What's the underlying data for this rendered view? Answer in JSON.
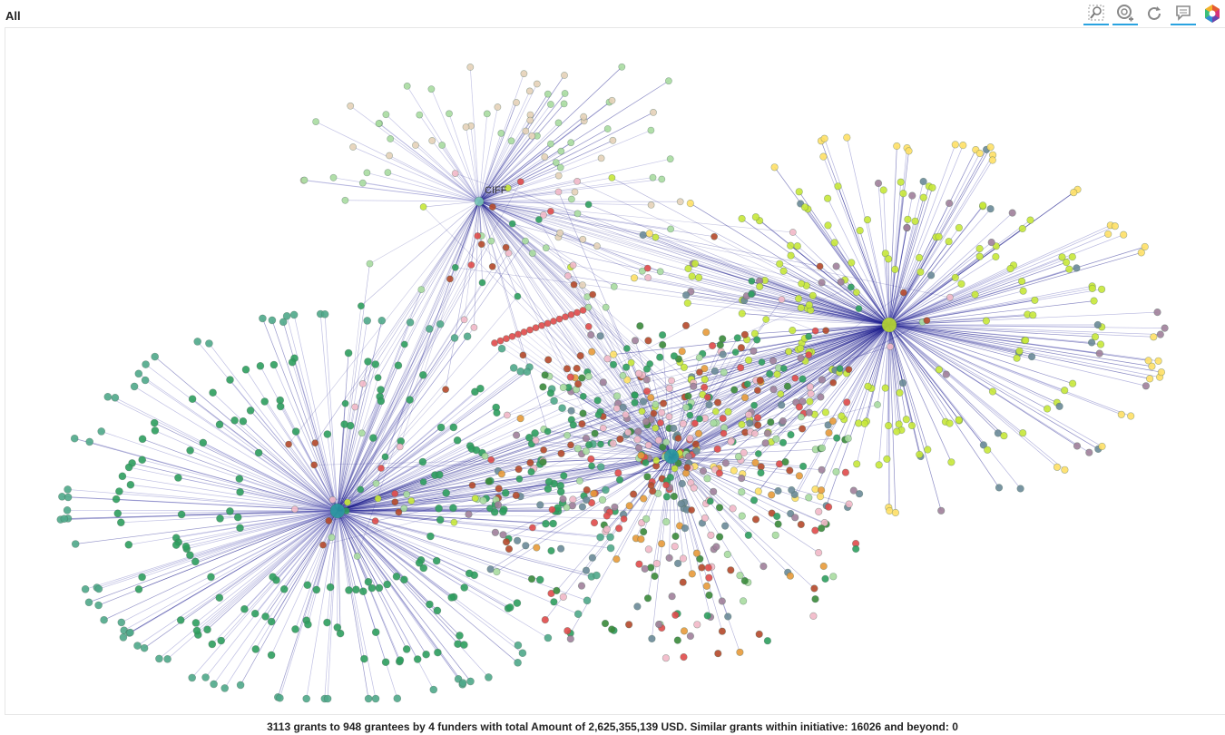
{
  "header": {
    "title": "All"
  },
  "toolbar": {
    "tools": [
      {
        "name": "box-zoom-tool",
        "active": true
      },
      {
        "name": "wheel-zoom-tool",
        "active": true
      },
      {
        "name": "reset-tool",
        "active": false
      },
      {
        "name": "hover-tool",
        "active": true
      },
      {
        "name": "bokeh-logo",
        "active": false
      }
    ]
  },
  "graph": {
    "labels": {
      "ciff": "CIFF"
    },
    "colors": {
      "edge_dark": "#1a1a8c",
      "edge_light": "#7070c0",
      "green": "#2e9e5e",
      "teal_green": "#4fa88a",
      "light_green": "#a8dca0",
      "yellow_green": "#c8e838",
      "yellow": "#ffe066",
      "tan": "#e6d2b8",
      "red": "#e04a4a",
      "dark_red": "#b5482a",
      "pink": "#f2b8c8",
      "purple": "#a0809a",
      "orange": "#e89a3a",
      "slate": "#6a8a98",
      "dark_green": "#3a8a3a"
    }
  },
  "footer": {
    "summary": "3113 grants to 948 grantees by 4 funders with total Amount of 2,625,355,139 USD.  Similar grants within initiative: 16026 and beyond: 0"
  }
}
